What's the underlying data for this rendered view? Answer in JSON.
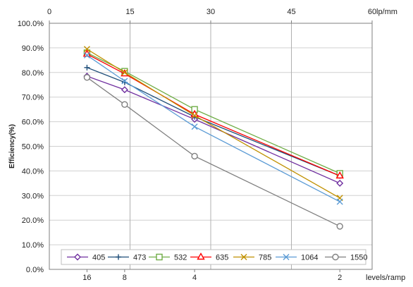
{
  "chart_data": {
    "type": "line",
    "ylabel": "Efficiency(%)",
    "ylim": [
      0,
      100
    ],
    "y_ticks": [
      "0.0%",
      "10.0%",
      "20.0%",
      "30.0%",
      "40.0%",
      "50.0%",
      "60.0%",
      "70.0%",
      "80.0%",
      "90.0%",
      "100.0%"
    ],
    "top_axis": {
      "range": [
        0,
        60
      ],
      "ticks": [
        "0",
        "15",
        "30",
        "45",
        "60"
      ],
      "unit": "lp/mm"
    },
    "bottom_axis": {
      "label": "levels/ramp",
      "ticks": [
        {
          "label": "16",
          "lpmm": 7
        },
        {
          "label": "8",
          "lpmm": 14
        },
        {
          "label": "4",
          "lpmm": 27
        },
        {
          "label": "2",
          "lpmm": 54
        }
      ]
    },
    "x": [
      7,
      14,
      27,
      54
    ],
    "grid": true,
    "legend_position": "bottom",
    "series": [
      {
        "name": "405",
        "values": [
          78.5,
          73,
          61,
          35
        ],
        "color": "#7030a0",
        "marker": "diamond"
      },
      {
        "name": "473",
        "values": [
          82,
          76,
          62,
          38
        ],
        "color": "#1f4e79",
        "marker": "plus"
      },
      {
        "name": "532",
        "values": [
          88,
          80.5,
          65,
          39
        ],
        "color": "#70ad47",
        "marker": "square"
      },
      {
        "name": "635",
        "values": [
          87.5,
          79.5,
          63,
          38
        ],
        "color": "#ff0000",
        "marker": "triangle"
      },
      {
        "name": "785",
        "values": [
          89.5,
          80,
          62.5,
          29
        ],
        "color": "#c09000",
        "marker": "x"
      },
      {
        "name": "1064",
        "values": [
          87,
          76.5,
          58,
          27.5
        ],
        "color": "#5b9bd5",
        "marker": "x"
      },
      {
        "name": "1550",
        "values": [
          78,
          67,
          46,
          17.5
        ],
        "color": "#7f7f7f",
        "marker": "circle"
      }
    ]
  }
}
